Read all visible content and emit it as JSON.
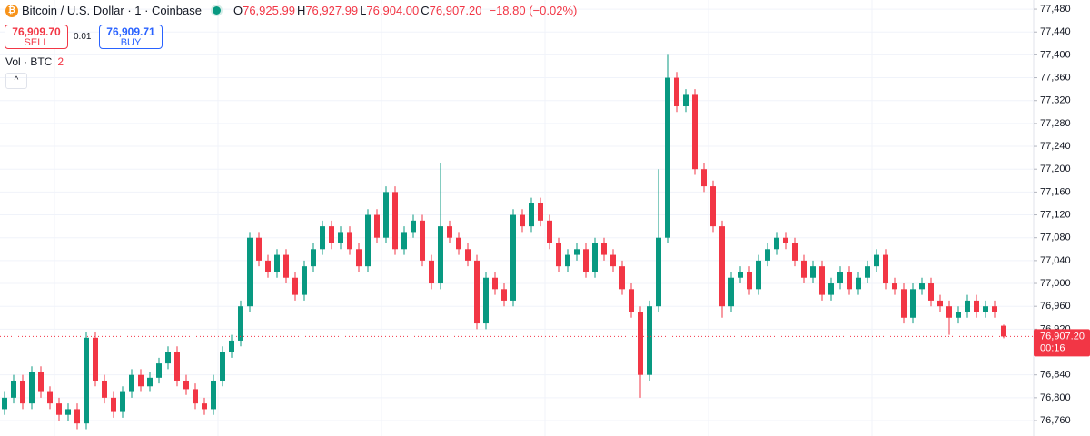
{
  "chart_data": {
    "type": "candlestick",
    "title": "Bitcoin / U.S. Dollar · 1 · Coinbase",
    "ohlc_legend": [
      {
        "key": "O",
        "value": "76,925.99"
      },
      {
        "key": "H",
        "value": "76,927.99"
      },
      {
        "key": "L",
        "value": "76,904.00"
      },
      {
        "key": "C",
        "value": "76,907.20"
      }
    ],
    "change": "−18.80 (−0.02%)",
    "sell": {
      "price": "76,909.70",
      "label": "SELL"
    },
    "spread": "0.01",
    "buy": {
      "price": "76,909.71",
      "label": "BUY"
    },
    "volume_label": "Vol · BTC",
    "volume_count": "2",
    "last_price": {
      "value": 76907.2,
      "label": "76,907.20"
    },
    "countdown": "00:16",
    "up_color": "#089981",
    "down_color": "#f23645",
    "grid": true,
    "ylim": [
      76733,
      77496
    ],
    "yticks": [
      {
        "value": 76760,
        "label": "76,760"
      },
      {
        "value": 76800,
        "label": "76,800"
      },
      {
        "value": 76840,
        "label": "76,840"
      },
      {
        "value": 76880,
        "label": "76,880"
      },
      {
        "value": 76920,
        "label": "76,920"
      },
      {
        "value": 76960,
        "label": "76,960"
      },
      {
        "value": 77000,
        "label": "77,000"
      },
      {
        "value": 77040,
        "label": "77,040"
      },
      {
        "value": 77080,
        "label": "77,080"
      },
      {
        "value": 77120,
        "label": "77,120"
      },
      {
        "value": 77160,
        "label": "77,160"
      },
      {
        "value": 77200,
        "label": "77,200"
      },
      {
        "value": 77240,
        "label": "77,240"
      },
      {
        "value": 77280,
        "label": "77,280"
      },
      {
        "value": 77320,
        "label": "77,320"
      },
      {
        "value": 77360,
        "label": "77,360"
      },
      {
        "value": 77400,
        "label": "77,400"
      },
      {
        "value": 77440,
        "label": "77,440"
      },
      {
        "value": 77480,
        "label": "77,480"
      }
    ],
    "open": [
      76780,
      76800,
      76830,
      76790,
      76845,
      76810,
      76790,
      76770,
      76780,
      76755,
      76905,
      76830,
      76800,
      76775,
      76810,
      76840,
      76820,
      76835,
      76860,
      76880,
      76830,
      76815,
      76790,
      76780,
      76830,
      76880,
      76900,
      76960,
      77080,
      77040,
      77020,
      77050,
      77010,
      76980,
      77030,
      77060,
      77100,
      77070,
      77090,
      77060,
      77030,
      77120,
      77080,
      77160,
      77060,
      77090,
      77110,
      77040,
      77000,
      77100,
      77080,
      77060,
      77040,
      76930,
      77010,
      76990,
      76970,
      77120,
      77100,
      77140,
      77110,
      77070,
      77030,
      77050,
      77060,
      77020,
      77070,
      77050,
      77030,
      76990,
      76950,
      76840,
      76960,
      77080,
      77360,
      77310,
      77330,
      77200,
      77170,
      77100,
      76960,
      77010,
      77020,
      76990,
      77040,
      77060,
      77080,
      77070,
      77040,
      77010,
      77030,
      76980,
      77000,
      77020,
      76990,
      77010,
      77030,
      77050,
      77000,
      76990,
      76940,
      76990,
      77000,
      76970,
      76960,
      76940,
      76950,
      76970,
      76950,
      76960,
      76925.99
    ],
    "high": [
      76810,
      76840,
      76840,
      76855,
      76855,
      76820,
      76800,
      76790,
      76790,
      76915,
      76915,
      76840,
      76810,
      76820,
      76850,
      76850,
      76845,
      76870,
      76890,
      76890,
      76840,
      76825,
      76800,
      76840,
      76890,
      76910,
      76970,
      77090,
      77090,
      77050,
      77060,
      77060,
      77020,
      77040,
      77070,
      77110,
      77110,
      77100,
      77100,
      77070,
      77130,
      77130,
      77170,
      77170,
      77100,
      77120,
      77120,
      77050,
      77210,
      77110,
      77090,
      77070,
      77050,
      77020,
      77020,
      77000,
      77130,
      77130,
      77150,
      77150,
      77120,
      77080,
      77060,
      77070,
      77070,
      77080,
      77080,
      77060,
      77040,
      77000,
      76960,
      76970,
      77200,
      77400,
      77370,
      77340,
      77340,
      77210,
      77180,
      77110,
      77020,
      77030,
      77030,
      77050,
      77070,
      77090,
      77090,
      77080,
      77050,
      77040,
      77040,
      77010,
      77030,
      77030,
      77020,
      77040,
      77060,
      77060,
      77010,
      77000,
      77000,
      77010,
      77010,
      76980,
      76970,
      76960,
      76980,
      76980,
      76970,
      76970,
      76927.99
    ],
    "low": [
      76770,
      76790,
      76780,
      76780,
      76800,
      76780,
      76760,
      76760,
      76745,
      76745,
      76820,
      76790,
      76765,
      76765,
      76800,
      76810,
      76810,
      76825,
      76850,
      76820,
      76805,
      76780,
      76770,
      76770,
      76820,
      76870,
      76890,
      76950,
      77030,
      77010,
      77010,
      77000,
      76970,
      76970,
      77020,
      77050,
      77060,
      77060,
      77050,
      77020,
      77020,
      77070,
      77070,
      77050,
      77050,
      77080,
      77030,
      76990,
      76990,
      77070,
      77050,
      77030,
      76920,
      76920,
      76980,
      76960,
      76960,
      77090,
      77090,
      77100,
      77060,
      77020,
      77020,
      77040,
      77010,
      77010,
      77040,
      77020,
      76980,
      76940,
      76800,
      76830,
      76950,
      77070,
      77300,
      77300,
      77190,
      77160,
      77090,
      76940,
      76950,
      77000,
      76980,
      76980,
      77030,
      77050,
      77060,
      77030,
      77000,
      77000,
      76970,
      76970,
      76990,
      76980,
      76980,
      77000,
      77020,
      76990,
      76980,
      76930,
      76930,
      76980,
      76960,
      76950,
      76910,
      76930,
      76940,
      76940,
      76940,
      76940,
      76904
    ],
    "close": [
      76800,
      76830,
      76790,
      76845,
      76810,
      76790,
      76770,
      76780,
      76755,
      76905,
      76830,
      76800,
      76775,
      76810,
      76840,
      76820,
      76835,
      76860,
      76880,
      76830,
      76815,
      76790,
      76780,
      76830,
      76880,
      76900,
      76960,
      77080,
      77040,
      77020,
      77050,
      77010,
      76980,
      77030,
      77060,
      77100,
      77070,
      77090,
      77060,
      77030,
      77120,
      77080,
      77160,
      77060,
      77090,
      77110,
      77040,
      77000,
      77100,
      77080,
      77060,
      77040,
      76930,
      77010,
      76990,
      76970,
      77120,
      77100,
      77140,
      77110,
      77070,
      77030,
      77050,
      77060,
      77020,
      77070,
      77050,
      77030,
      76990,
      76950,
      76840,
      76960,
      77080,
      77360,
      77310,
      77330,
      77200,
      77170,
      77100,
      76960,
      77010,
      77020,
      76990,
      77040,
      77060,
      77080,
      77070,
      77040,
      77010,
      77030,
      76980,
      77000,
      77020,
      76990,
      77010,
      77030,
      77050,
      77000,
      76990,
      76940,
      76990,
      77000,
      76970,
      76960,
      76940,
      76950,
      76970,
      76950,
      76960,
      76950,
      76907.2
    ]
  }
}
